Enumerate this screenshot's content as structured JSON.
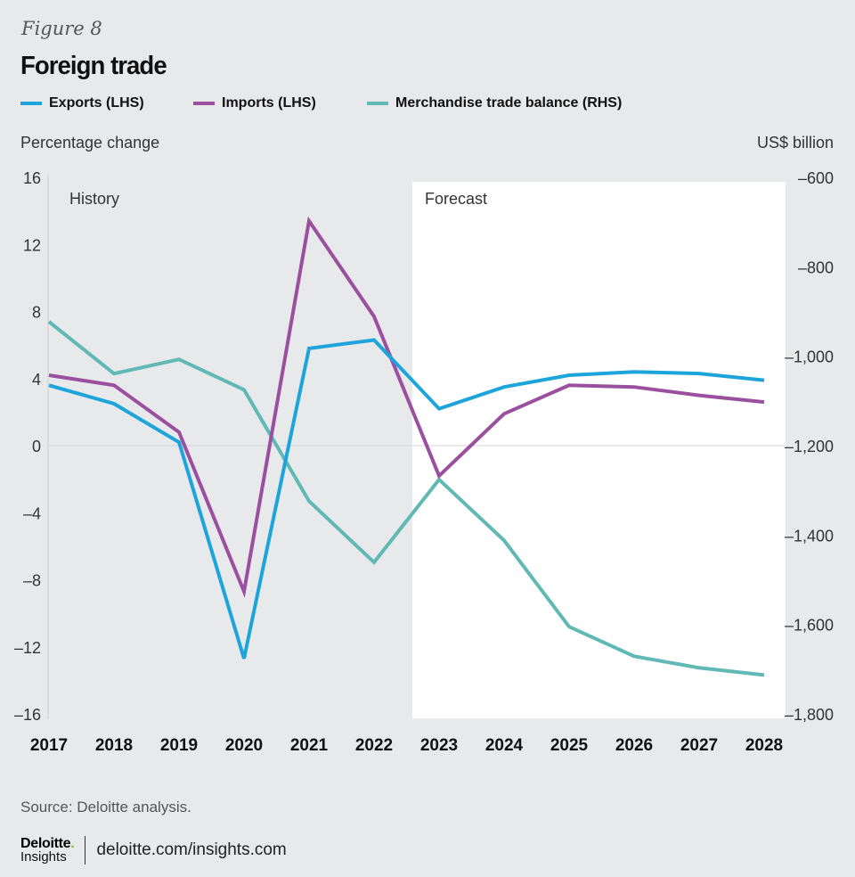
{
  "figure_label": "Figure 8",
  "title": "Foreign trade",
  "source": "Source: Deloitte analysis.",
  "footer": {
    "brand_top": "Deloitte",
    "brand_dot": ".",
    "brand_bottom": "Insights",
    "url": "deloitte.com/insights.com"
  },
  "colors": {
    "exports": "#1da5db",
    "imports": "#9b4f9f",
    "balance": "#60b9b4",
    "forecast_bg": "#ffffff",
    "background": "#e8e9eb"
  },
  "chart_data": {
    "type": "line",
    "title": "Foreign trade",
    "ylabel": "Percentage change",
    "y2label": "US$ billion",
    "xlabel": "",
    "x": [
      "2017",
      "2018",
      "2019",
      "2020",
      "2021",
      "2022",
      "2023",
      "2024",
      "2025",
      "2026",
      "2027",
      "2028"
    ],
    "ylim": [
      -16,
      16
    ],
    "yticks": [
      16,
      12,
      8,
      4,
      0,
      -4,
      -8,
      -12,
      -16
    ],
    "ytick_labels": [
      "16",
      "12",
      "8",
      "4",
      "0",
      "–4",
      "–8",
      "–12",
      "–16"
    ],
    "y2lim": [
      -1800,
      -600
    ],
    "y2ticks": [
      -600,
      -800,
      -1000,
      -1200,
      -1400,
      -1600,
      -1800
    ],
    "y2tick_labels": [
      "–600",
      "–800",
      "–1,000",
      "–1,200",
      "–1,400",
      "–1,600",
      "–1,800"
    ],
    "legend_position": "top-left",
    "annotations": [
      {
        "text": "History",
        "region": "2017-2022"
      },
      {
        "text": "Forecast",
        "region": "2023-2028",
        "shaded": true
      }
    ],
    "series": [
      {
        "name": "Exports (LHS)",
        "axis": "left",
        "key": "exports",
        "values": [
          3.6,
          2.5,
          0.2,
          -12.7,
          5.8,
          6.3,
          2.2,
          3.5,
          4.2,
          4.4,
          4.3,
          3.9
        ]
      },
      {
        "name": "Imports (LHS)",
        "axis": "left",
        "key": "imports",
        "values": [
          4.2,
          3.6,
          0.8,
          -8.7,
          13.4,
          7.7,
          -1.8,
          1.9,
          3.6,
          3.5,
          3.0,
          2.6
        ]
      },
      {
        "name": "Merchandise trade balance (RHS)",
        "axis": "right",
        "key": "balance",
        "values": [
          -923,
          -1039,
          -1007,
          -1075,
          -1324,
          -1461,
          -1276,
          -1412,
          -1605,
          -1671,
          -1697,
          -1713
        ]
      }
    ]
  }
}
